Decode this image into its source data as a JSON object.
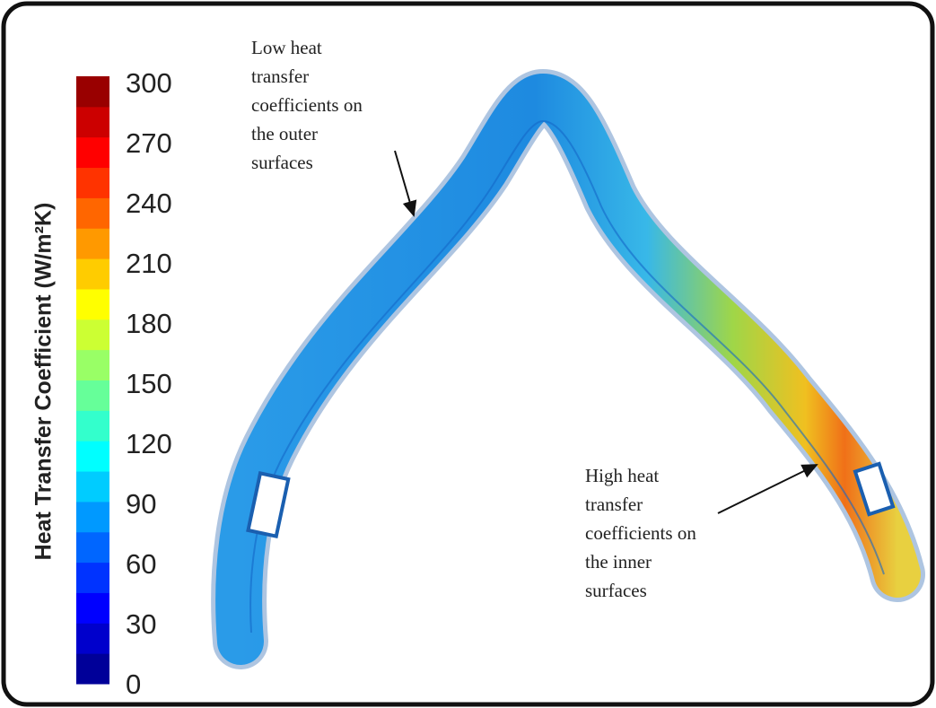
{
  "colorbar": {
    "label": "Heat Transfer Coefficient (W/m²K)",
    "ticks": [
      0,
      30,
      60,
      90,
      120,
      150,
      180,
      210,
      240,
      270,
      300
    ]
  },
  "annotations": [
    {
      "lines": [
        "Low heat",
        "transfer",
        "coefficients on",
        "the outer",
        "surfaces"
      ]
    },
    {
      "lines": [
        "High heat",
        "transfer",
        "coefficients on",
        "the inner",
        "surfaces"
      ]
    }
  ]
}
